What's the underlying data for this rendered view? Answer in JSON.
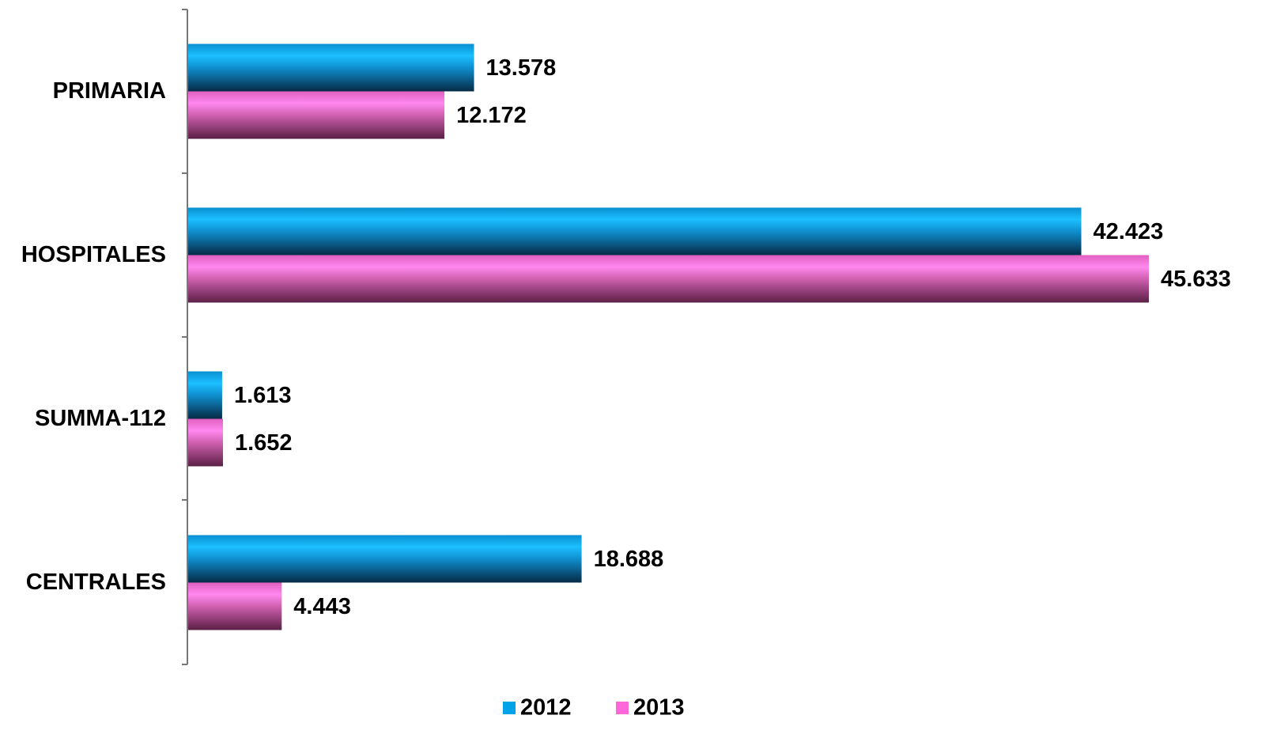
{
  "chart_data": {
    "type": "bar",
    "orientation": "horizontal",
    "categories": [
      "PRIMARIA",
      "HOSPITALES",
      "SUMMA-112",
      "CENTRALES"
    ],
    "series": [
      {
        "name": "2012",
        "color": "#00a2e8",
        "values": [
          13578,
          42423,
          1613,
          18688
        ],
        "value_labels": [
          "13.578",
          "42.423",
          "1.613",
          "18.688"
        ]
      },
      {
        "name": "2013",
        "color": "#ff66d9",
        "values": [
          12172,
          45633,
          1652,
          4443
        ],
        "value_labels": [
          "12.172",
          "45.633",
          "1.652",
          "4.443"
        ]
      }
    ],
    "legend": "bottom"
  }
}
